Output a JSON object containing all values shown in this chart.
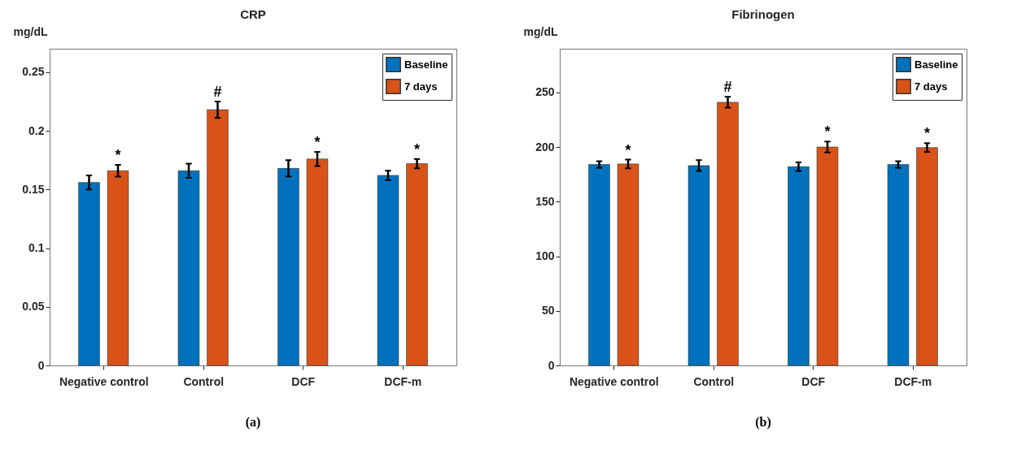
{
  "chart_data": [
    {
      "type": "bar",
      "title": "CRP",
      "ylabel": "mg/dL",
      "categories": [
        "Negative control",
        "Control",
        "DCF",
        "DCF-m"
      ],
      "series": [
        {
          "name": "Baseline",
          "color": "#0072bd",
          "values": [
            0.156,
            0.166,
            0.168,
            0.162
          ],
          "errors": [
            0.006,
            0.006,
            0.007,
            0.004
          ]
        },
        {
          "name": "7 days",
          "color": "#d95319",
          "values": [
            0.166,
            0.218,
            0.176,
            0.172
          ],
          "errors": [
            0.005,
            0.007,
            0.006,
            0.004
          ]
        }
      ],
      "ylim": [
        0,
        0.27
      ],
      "yticks": [
        0,
        0.05,
        0.1,
        0.15,
        0.2,
        0.25
      ],
      "grid": false,
      "legend": "top right",
      "annotations": [
        "*",
        "#",
        "*",
        "*",
        "(a)"
      ]
    },
    {
      "type": "bar",
      "title": "Fibrinogen",
      "ylabel": "mg/dL",
      "categories": [
        "Negative control",
        "Control",
        "DCF",
        "DCF-m"
      ],
      "series": [
        {
          "name": "Baseline",
          "color": "#0072bd",
          "values": [
            184,
            183,
            182,
            184
          ],
          "errors": [
            3,
            5,
            4,
            3
          ]
        },
        {
          "name": "7 days",
          "color": "#d95319",
          "values": [
            184.5,
            241,
            200,
            199.5
          ],
          "errors": [
            4,
            5,
            5,
            4
          ]
        }
      ],
      "ylim": [
        0,
        290
      ],
      "yticks": [
        0,
        50,
        100,
        150,
        200,
        250
      ],
      "grid": false,
      "legend": "top right",
      "annotations": [
        "*",
        "#",
        "*",
        "*",
        "(b)"
      ]
    }
  ]
}
